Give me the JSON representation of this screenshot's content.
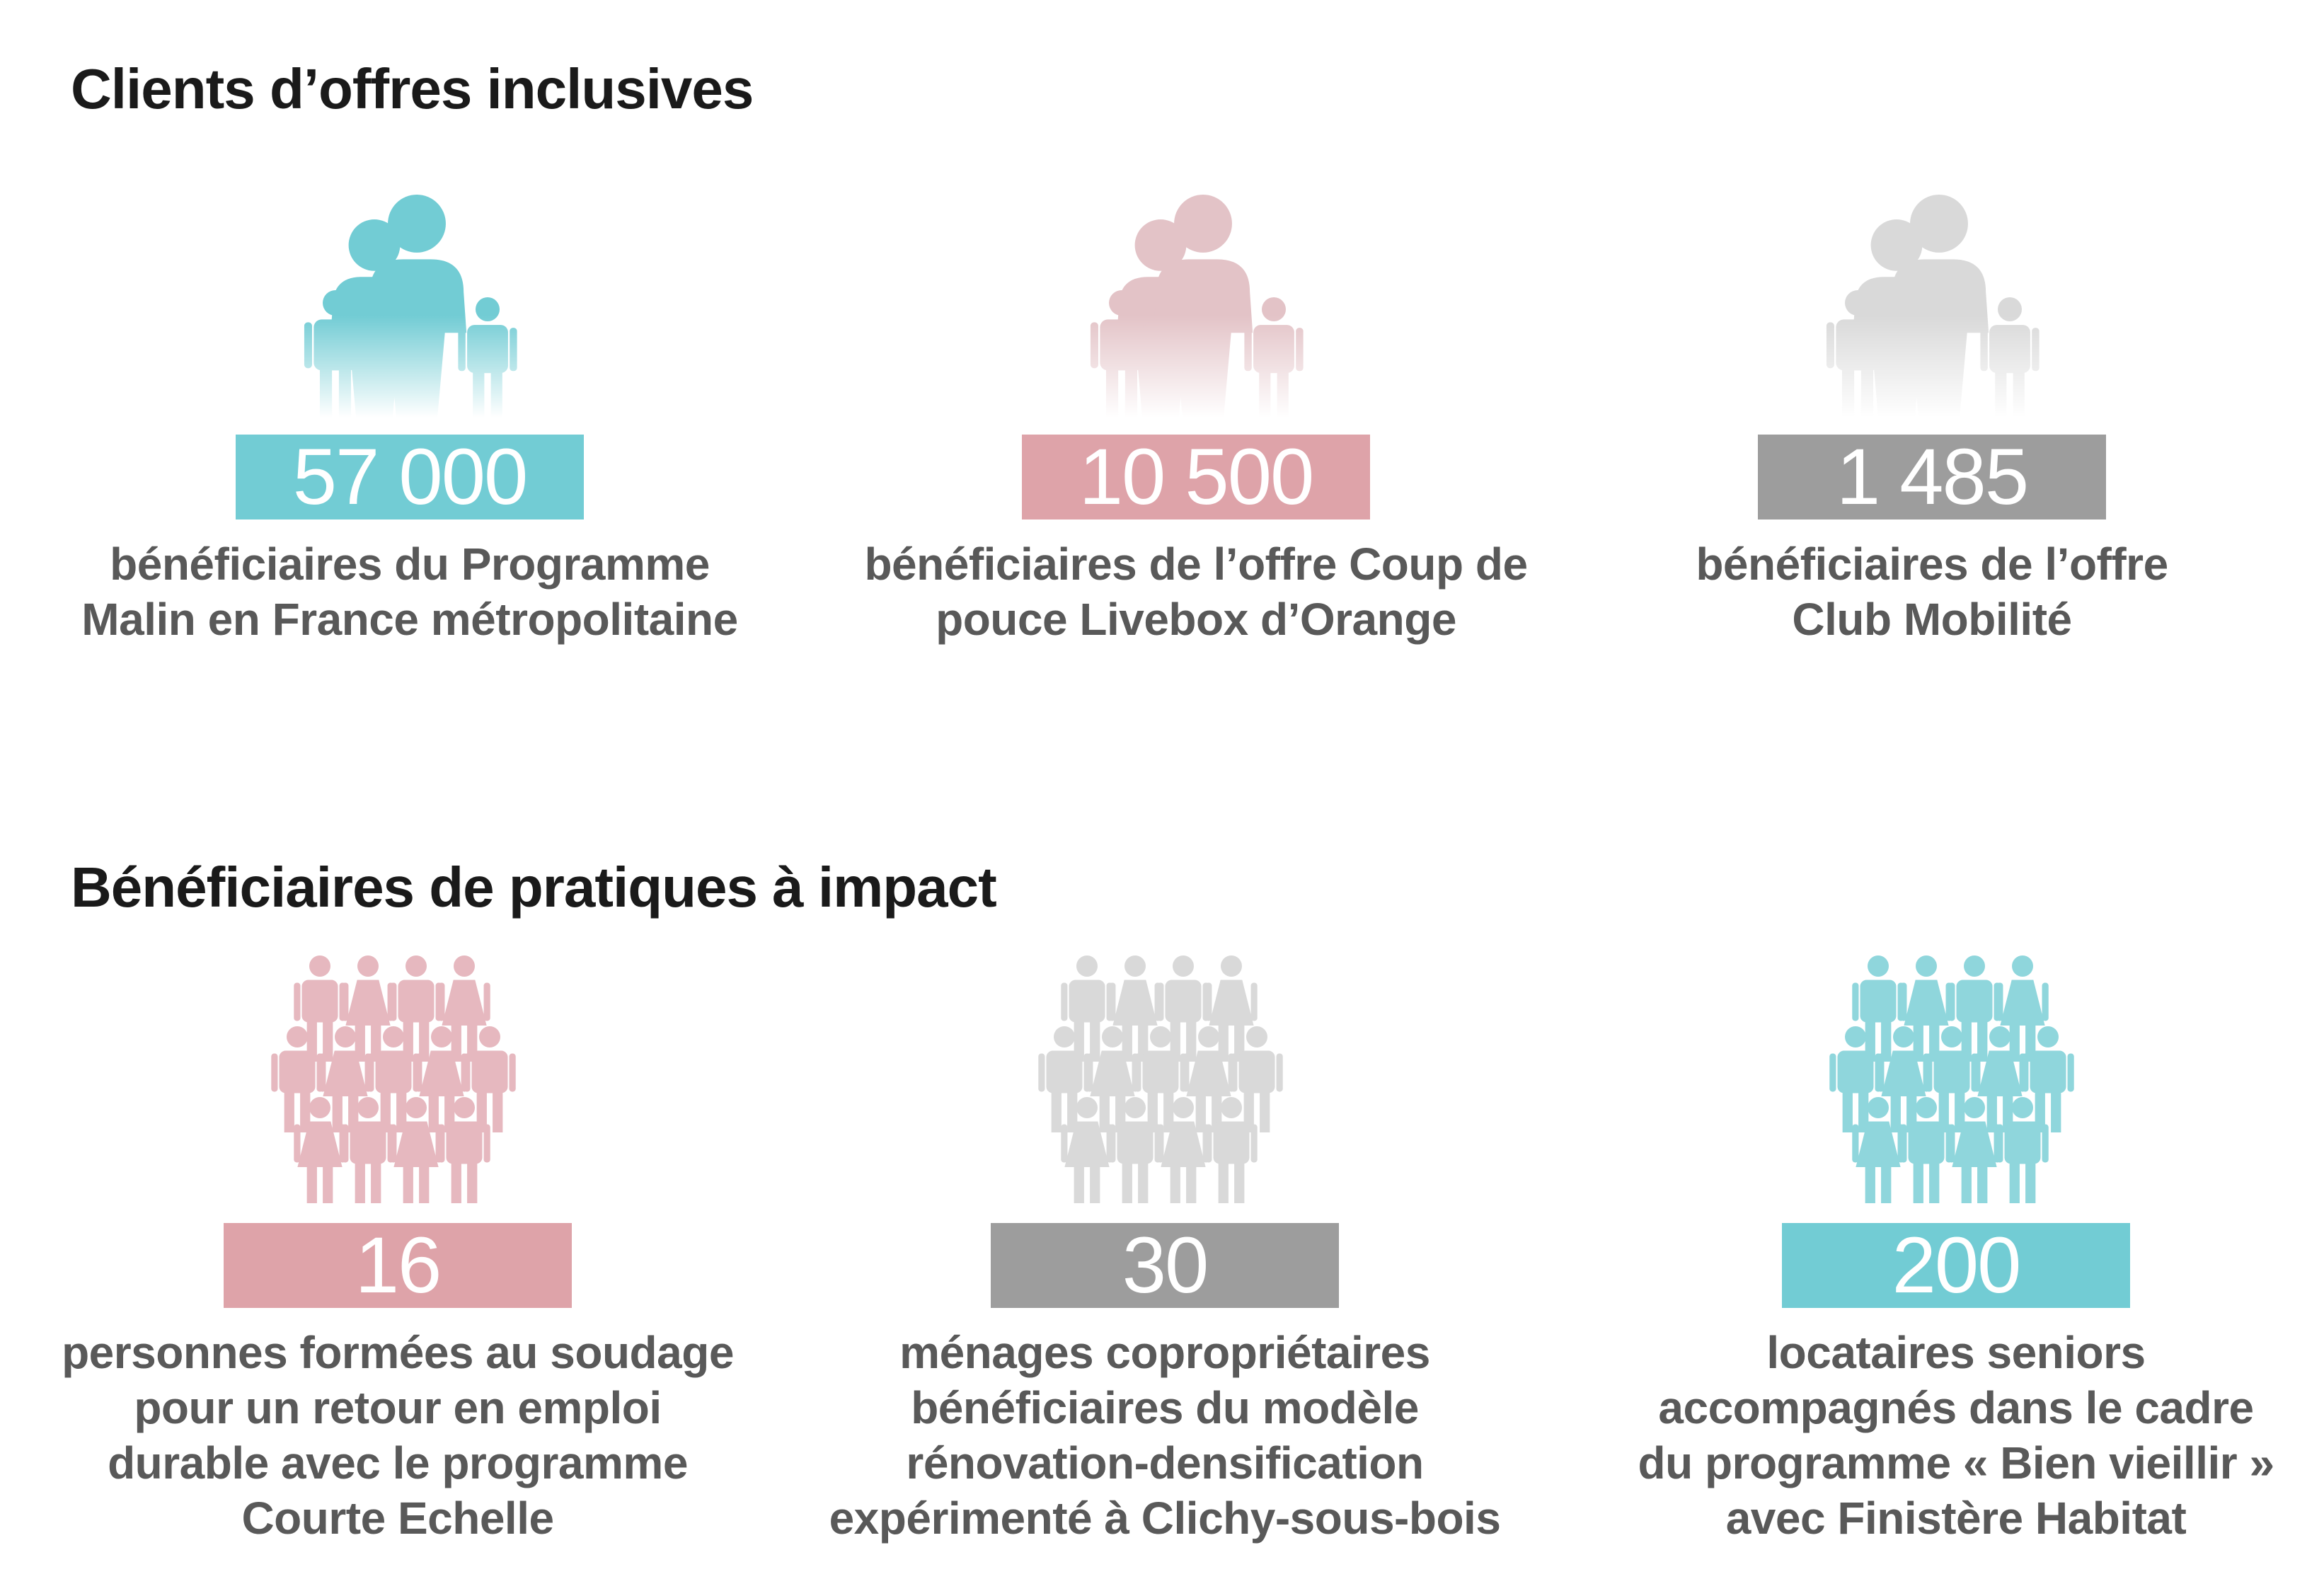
{
  "sections": [
    {
      "title": "Clients d’offres inclusives",
      "items": [
        {
          "value": "57 000",
          "caption_lines": [
            "bénéficiaires du Programme",
            "Malin en France métropolitaine"
          ],
          "color": "#72ccd4",
          "icon": "family-icon"
        },
        {
          "value": "10 500",
          "caption_lines": [
            "bénéficiaires de l’offre Coup de",
            "pouce Livebox d’Orange"
          ],
          "color": "#dea3a9",
          "icon": "family-icon"
        },
        {
          "value": "1 485",
          "caption_lines": [
            "bénéficiaires de l’offre",
            "Club Mobilité"
          ],
          "color": "#9d9d9d",
          "icon": "family-icon"
        }
      ]
    },
    {
      "title": "Bénéficiaires de pratiques à impact",
      "items": [
        {
          "value": "16",
          "caption_lines": [
            "personnes formées au soudage",
            "pour un retour en emploi",
            "durable avec le programme",
            "Courte Echelle"
          ],
          "color": "#dea3a9",
          "icon": "crowd-icon"
        },
        {
          "value": "30",
          "caption_lines": [
            "ménages copropriétaires",
            "bénéficiaires du modèle",
            "rénovation-densification",
            "expérimenté à Clichy-sous-bois"
          ],
          "color": "#9d9d9d",
          "icon": "crowd-icon"
        },
        {
          "value": "200",
          "caption_lines": [
            "locataires seniors",
            "accompagnés dans le cadre",
            "du programme « Bien vieillir »",
            "avec Finistère Habitat"
          ],
          "color": "#72ccd4",
          "icon": "crowd-icon"
        }
      ]
    }
  ],
  "icon_tints": {
    "family": [
      "#72ccd4",
      "#e3c3c7",
      "#d9d9d9"
    ],
    "crowd": [
      "#e6b8bf",
      "#d9d9d9",
      "#8fd6dc"
    ]
  }
}
